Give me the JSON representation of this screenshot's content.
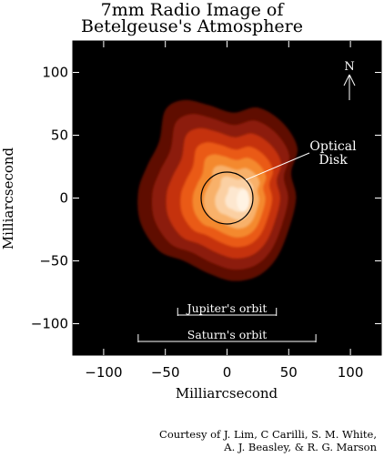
{
  "title": {
    "line1": "7mm Radio Image of",
    "line2": "Betelgeuse's Atmosphere"
  },
  "credit": {
    "line1": "Courtesy of J. Lim, C Carilli, S. M. White,",
    "line2": "A. J. Beasley, & R. G. Marson"
  },
  "chart_data": {
    "type": "heatmap",
    "xlabel": "Milliarcsecond",
    "ylabel": "Milliarcsecond",
    "xlim": [
      -125,
      125
    ],
    "ylim": [
      -125,
      125
    ],
    "x_ticks": [
      -100,
      -50,
      0,
      50,
      100
    ],
    "y_ticks": [
      100,
      50,
      0,
      -50,
      -100
    ],
    "x_tick_labels": [
      "−100",
      "−50",
      "0",
      "50",
      "100"
    ],
    "y_tick_labels": [
      "100",
      "50",
      "0",
      "−50",
      "−100"
    ],
    "annotations": {
      "north": "N",
      "optical_disk_line1": "Optical",
      "optical_disk_line2": "Disk",
      "jupiter": "Jupiter's orbit",
      "saturn": "Saturn's orbit"
    },
    "optical_disk": {
      "center": [
        0,
        0
      ],
      "radius": 21
    },
    "jupiter_orbit_x": [
      -40,
      40
    ],
    "saturn_orbit_x": [
      -72,
      72
    ],
    "colors": {
      "background": "#000000",
      "levels": [
        "#5e0d05",
        "#8c1a07",
        "#c53209",
        "#ea5a12",
        "#f4892d",
        "#f8b16a",
        "#fbd0a3",
        "#fde7cf"
      ]
    }
  }
}
